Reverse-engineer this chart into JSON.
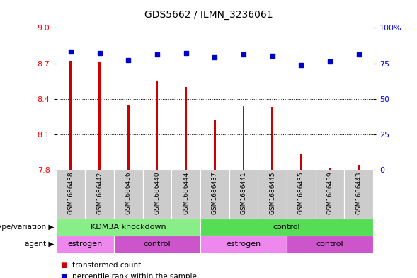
{
  "title": "GDS5662 / ILMN_3236061",
  "samples": [
    "GSM1686438",
    "GSM1686442",
    "GSM1686436",
    "GSM1686440",
    "GSM1686444",
    "GSM1686437",
    "GSM1686441",
    "GSM1686445",
    "GSM1686435",
    "GSM1686439",
    "GSM1686443"
  ],
  "red_values": [
    8.72,
    8.71,
    8.35,
    8.55,
    8.5,
    8.22,
    8.34,
    8.33,
    7.93,
    7.82,
    7.84
  ],
  "blue_values": [
    83,
    82,
    77,
    81,
    82,
    79,
    81,
    80,
    74,
    76,
    81
  ],
  "ylim_left": [
    7.8,
    9.0
  ],
  "ylim_right": [
    0,
    100
  ],
  "yticks_left": [
    7.8,
    8.1,
    8.4,
    8.7,
    9.0
  ],
  "yticks_right": [
    0,
    25,
    50,
    75,
    100
  ],
  "ytick_labels_right": [
    "0",
    "25",
    "50",
    "75",
    "100%"
  ],
  "genotype_groups": [
    {
      "label": "KDM3A knockdown",
      "start": 0,
      "end": 5,
      "color": "#88EE88"
    },
    {
      "label": "control",
      "start": 5,
      "end": 11,
      "color": "#55DD55"
    }
  ],
  "agent_groups": [
    {
      "label": "estrogen",
      "start": 0,
      "end": 2,
      "color": "#EE88EE"
    },
    {
      "label": "control",
      "start": 2,
      "end": 5,
      "color": "#CC55CC"
    },
    {
      "label": "estrogen",
      "start": 5,
      "end": 8,
      "color": "#EE88EE"
    },
    {
      "label": "control",
      "start": 8,
      "end": 11,
      "color": "#CC55CC"
    }
  ],
  "bar_color": "#CC0000",
  "dot_color": "#0000CC",
  "col_bg_color": "#CCCCCC",
  "background_color": "#FFFFFF",
  "legend_red_label": "transformed count",
  "legend_blue_label": "percentile rank within the sample",
  "genotype_label": "genotype/variation",
  "agent_label": "agent",
  "bar_width": 0.07
}
